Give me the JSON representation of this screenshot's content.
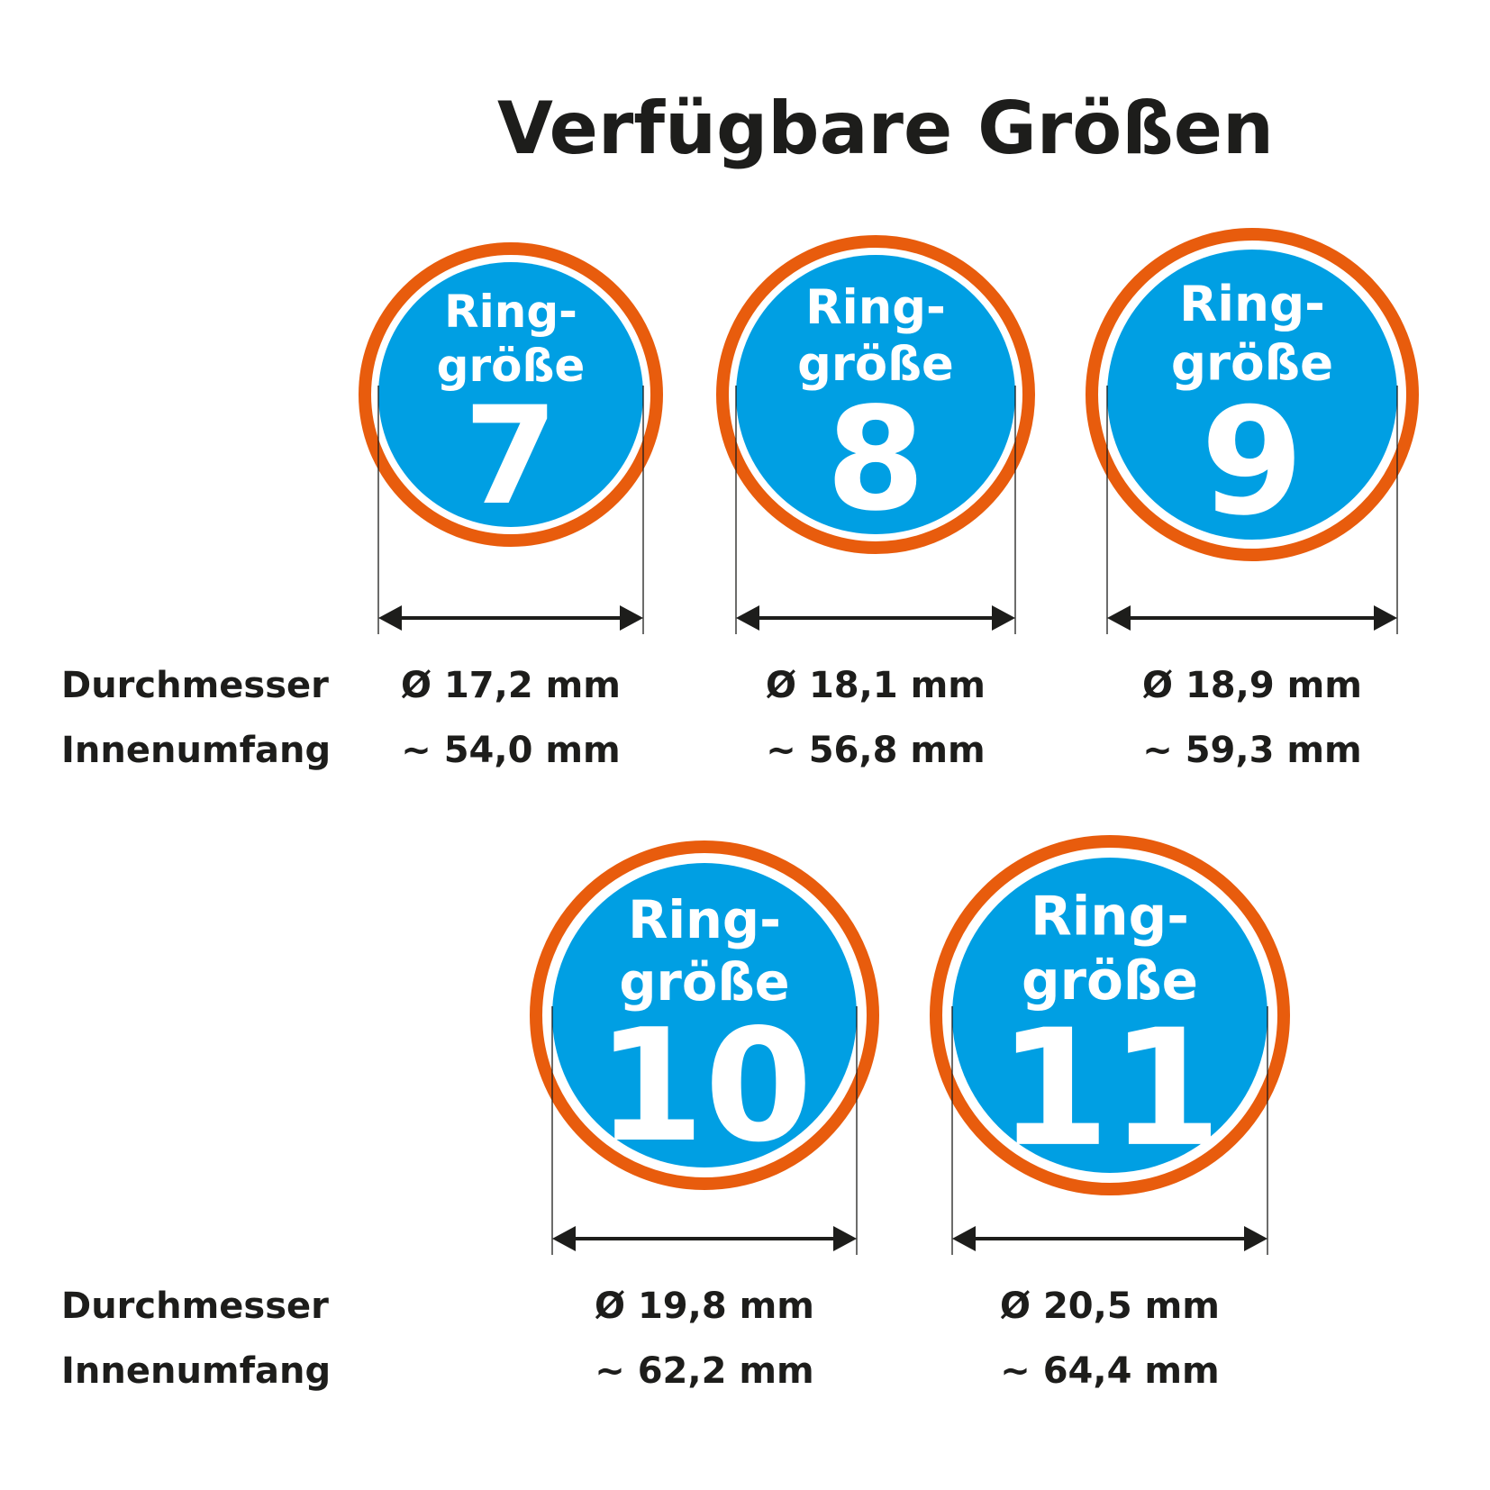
{
  "title": "Verfügbare Größen",
  "row_labels": {
    "diameter": "Durchmesser",
    "circumference": "Innenumfang"
  },
  "colors": {
    "ring": "#E85C0D",
    "disc": "#009FE3",
    "text": "#1d1d1b"
  },
  "sizes": [
    {
      "label_line1": "Ring-",
      "label_line2": "größe",
      "number": "7",
      "diameter": "Ø 17,2 mm",
      "circumference": "~ 54,0 mm"
    },
    {
      "label_line1": "Ring-",
      "label_line2": "größe",
      "number": "8",
      "diameter": "Ø 18,1 mm",
      "circumference": "~ 56,8 mm"
    },
    {
      "label_line1": "Ring-",
      "label_line2": "größe",
      "number": "9",
      "diameter": "Ø 18,9 mm",
      "circumference": "~ 59,3 mm"
    },
    {
      "label_line1": "Ring-",
      "label_line2": "größe",
      "number": "10",
      "diameter": "Ø 19,8 mm",
      "circumference": "~ 62,2 mm"
    },
    {
      "label_line1": "Ring-",
      "label_line2": "größe",
      "number": "11",
      "diameter": "Ø 20,5 mm",
      "circumference": "~ 64,4 mm"
    }
  ]
}
